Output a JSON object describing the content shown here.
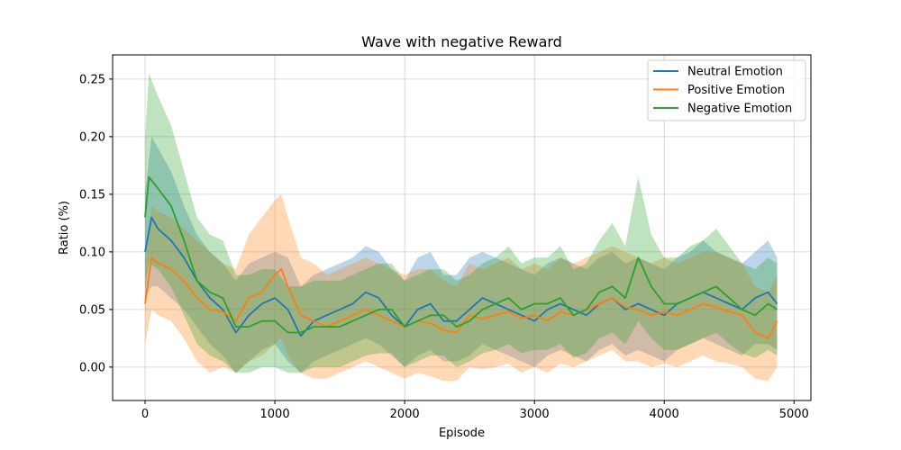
{
  "chart_data": {
    "type": "line",
    "title": "Wave with negative Reward",
    "xlabel": "Episode",
    "ylabel": "Ratio (%)",
    "xlim": [
      -250,
      5130
    ],
    "ylim": [
      -0.029,
      0.271
    ],
    "xticks": [
      0,
      1000,
      2000,
      3000,
      4000,
      5000
    ],
    "yticks": [
      0.0,
      0.05,
      0.1,
      0.15,
      0.2,
      0.25
    ],
    "grid": true,
    "legend": "top-right",
    "series": [
      {
        "name": "Neutral Emotion",
        "color": "#1f77b4",
        "x": [
          0,
          50,
          100,
          200,
          300,
          400,
          500,
          600,
          700,
          800,
          900,
          1000,
          1100,
          1200,
          1300,
          1400,
          1500,
          1600,
          1700,
          1800,
          1900,
          2000,
          2100,
          2200,
          2300,
          2400,
          2500,
          2600,
          2700,
          2800,
          2900,
          3000,
          3100,
          3200,
          3300,
          3400,
          3500,
          3600,
          3700,
          3800,
          3900,
          4000,
          4100,
          4200,
          4300,
          4400,
          4500,
          4600,
          4700,
          4800,
          4870
        ],
        "y": [
          0.1,
          0.13,
          0.12,
          0.11,
          0.095,
          0.075,
          0.06,
          0.05,
          0.03,
          0.045,
          0.055,
          0.06,
          0.05,
          0.027,
          0.04,
          0.045,
          0.05,
          0.055,
          0.065,
          0.06,
          0.045,
          0.035,
          0.05,
          0.055,
          0.04,
          0.04,
          0.05,
          0.06,
          0.055,
          0.05,
          0.045,
          0.04,
          0.05,
          0.055,
          0.05,
          0.045,
          0.055,
          0.06,
          0.05,
          0.055,
          0.05,
          0.045,
          0.055,
          0.06,
          0.065,
          0.06,
          0.055,
          0.05,
          0.06,
          0.065,
          0.055
        ],
        "lower": [
          0.06,
          0.07,
          0.07,
          0.06,
          0.05,
          0.035,
          0.02,
          0.01,
          -0.005,
          0.005,
          0.015,
          0.02,
          0.005,
          -0.005,
          0.005,
          0.01,
          0.015,
          0.02,
          0.025,
          0.02,
          0.01,
          0.0,
          0.01,
          0.015,
          0.005,
          0.005,
          0.01,
          0.02,
          0.015,
          0.01,
          0.005,
          0.0,
          0.01,
          0.015,
          0.01,
          0.005,
          0.015,
          0.02,
          0.01,
          0.015,
          0.01,
          0.005,
          0.015,
          0.02,
          0.025,
          0.02,
          0.015,
          0.01,
          0.02,
          0.02,
          0.015
        ],
        "upper": [
          0.15,
          0.2,
          0.19,
          0.17,
          0.14,
          0.115,
          0.1,
          0.09,
          0.075,
          0.09,
          0.095,
          0.1,
          0.095,
          0.07,
          0.08,
          0.085,
          0.09,
          0.095,
          0.105,
          0.1,
          0.085,
          0.075,
          0.095,
          0.1,
          0.08,
          0.08,
          0.095,
          0.1,
          0.095,
          0.09,
          0.085,
          0.08,
          0.09,
          0.095,
          0.09,
          0.085,
          0.095,
          0.1,
          0.09,
          0.095,
          0.09,
          0.085,
          0.095,
          0.1,
          0.11,
          0.1,
          0.095,
          0.09,
          0.1,
          0.11,
          0.095
        ]
      },
      {
        "name": "Positive Emotion",
        "color": "#ff7f0e",
        "x": [
          0,
          50,
          100,
          200,
          300,
          400,
          500,
          600,
          700,
          800,
          900,
          1000,
          1050,
          1100,
          1200,
          1300,
          1400,
          1500,
          1600,
          1700,
          1800,
          1900,
          2000,
          2100,
          2200,
          2300,
          2400,
          2500,
          2600,
          2700,
          2800,
          2900,
          3000,
          3100,
          3200,
          3300,
          3400,
          3500,
          3600,
          3700,
          3800,
          3900,
          4000,
          4100,
          4200,
          4300,
          4400,
          4500,
          4600,
          4700,
          4800,
          4870
        ],
        "y": [
          0.055,
          0.095,
          0.09,
          0.085,
          0.075,
          0.06,
          0.05,
          0.048,
          0.04,
          0.06,
          0.065,
          0.08,
          0.085,
          0.07,
          0.045,
          0.04,
          0.035,
          0.04,
          0.045,
          0.05,
          0.045,
          0.04,
          0.035,
          0.04,
          0.038,
          0.032,
          0.03,
          0.045,
          0.042,
          0.045,
          0.048,
          0.042,
          0.045,
          0.04,
          0.048,
          0.045,
          0.05,
          0.055,
          0.06,
          0.052,
          0.05,
          0.045,
          0.048,
          0.045,
          0.05,
          0.055,
          0.052,
          0.048,
          0.045,
          0.03,
          0.025,
          0.04
        ],
        "lower": [
          0.02,
          0.05,
          0.045,
          0.04,
          0.025,
          0.005,
          -0.005,
          0.0,
          -0.005,
          0.005,
          0.01,
          0.02,
          0.025,
          0.01,
          -0.005,
          -0.01,
          -0.01,
          -0.005,
          0.0,
          0.005,
          0.0,
          -0.005,
          -0.01,
          -0.005,
          -0.008,
          -0.012,
          -0.012,
          0.0,
          -0.002,
          0.0,
          0.003,
          -0.005,
          0.0,
          -0.005,
          0.003,
          0.0,
          0.005,
          0.01,
          0.015,
          0.005,
          0.005,
          0.0,
          0.003,
          0.0,
          0.005,
          0.01,
          0.005,
          0.003,
          0.0,
          -0.01,
          -0.012,
          0.0
        ],
        "upper": [
          0.09,
          0.14,
          0.135,
          0.13,
          0.12,
          0.11,
          0.1,
          0.09,
          0.085,
          0.115,
          0.13,
          0.145,
          0.15,
          0.13,
          0.095,
          0.09,
          0.08,
          0.085,
          0.09,
          0.095,
          0.09,
          0.085,
          0.08,
          0.085,
          0.085,
          0.075,
          0.07,
          0.09,
          0.085,
          0.09,
          0.095,
          0.085,
          0.09,
          0.085,
          0.095,
          0.09,
          0.095,
          0.1,
          0.105,
          0.1,
          0.095,
          0.09,
          0.095,
          0.09,
          0.095,
          0.1,
          0.1,
          0.095,
          0.09,
          0.07,
          0.065,
          0.08
        ]
      },
      {
        "name": "Negative Emotion",
        "color": "#2ca02c",
        "x": [
          0,
          30,
          100,
          200,
          300,
          400,
          500,
          600,
          700,
          800,
          900,
          1000,
          1100,
          1200,
          1300,
          1400,
          1500,
          1600,
          1700,
          1800,
          1900,
          2000,
          2100,
          2200,
          2300,
          2400,
          2500,
          2600,
          2700,
          2800,
          2900,
          3000,
          3100,
          3200,
          3300,
          3400,
          3500,
          3600,
          3700,
          3800,
          3900,
          4000,
          4100,
          4200,
          4300,
          4400,
          4500,
          4600,
          4700,
          4800,
          4870
        ],
        "y": [
          0.13,
          0.165,
          0.155,
          0.14,
          0.11,
          0.075,
          0.065,
          0.06,
          0.035,
          0.035,
          0.04,
          0.04,
          0.03,
          0.03,
          0.035,
          0.035,
          0.035,
          0.04,
          0.045,
          0.05,
          0.05,
          0.035,
          0.04,
          0.045,
          0.045,
          0.035,
          0.04,
          0.05,
          0.055,
          0.06,
          0.05,
          0.055,
          0.055,
          0.06,
          0.045,
          0.05,
          0.065,
          0.07,
          0.06,
          0.095,
          0.07,
          0.055,
          0.055,
          0.06,
          0.065,
          0.07,
          0.06,
          0.05,
          0.045,
          0.055,
          0.05
        ],
        "lower": [
          0.07,
          0.09,
          0.085,
          0.07,
          0.045,
          0.02,
          0.01,
          0.005,
          -0.005,
          -0.005,
          0.0,
          0.0,
          -0.005,
          -0.005,
          0.0,
          0.0,
          0.0,
          0.005,
          0.01,
          0.012,
          0.012,
          0.0,
          0.005,
          0.01,
          0.01,
          0.0,
          0.005,
          0.012,
          0.015,
          0.02,
          0.012,
          0.015,
          0.015,
          0.02,
          0.008,
          0.012,
          0.025,
          0.03,
          0.02,
          0.04,
          0.025,
          0.015,
          0.015,
          0.02,
          0.025,
          0.03,
          0.02,
          0.012,
          0.008,
          0.015,
          0.01
        ],
        "upper": [
          0.2,
          0.255,
          0.235,
          0.21,
          0.17,
          0.13,
          0.115,
          0.11,
          0.08,
          0.08,
          0.085,
          0.085,
          0.07,
          0.07,
          0.075,
          0.075,
          0.075,
          0.08,
          0.085,
          0.09,
          0.09,
          0.075,
          0.08,
          0.085,
          0.085,
          0.075,
          0.08,
          0.09,
          0.095,
          0.105,
          0.09,
          0.095,
          0.095,
          0.105,
          0.085,
          0.09,
          0.11,
          0.125,
          0.105,
          0.165,
          0.115,
          0.095,
          0.095,
          0.105,
          0.11,
          0.12,
          0.105,
          0.09,
          0.085,
          0.095,
          0.09
        ]
      }
    ]
  }
}
